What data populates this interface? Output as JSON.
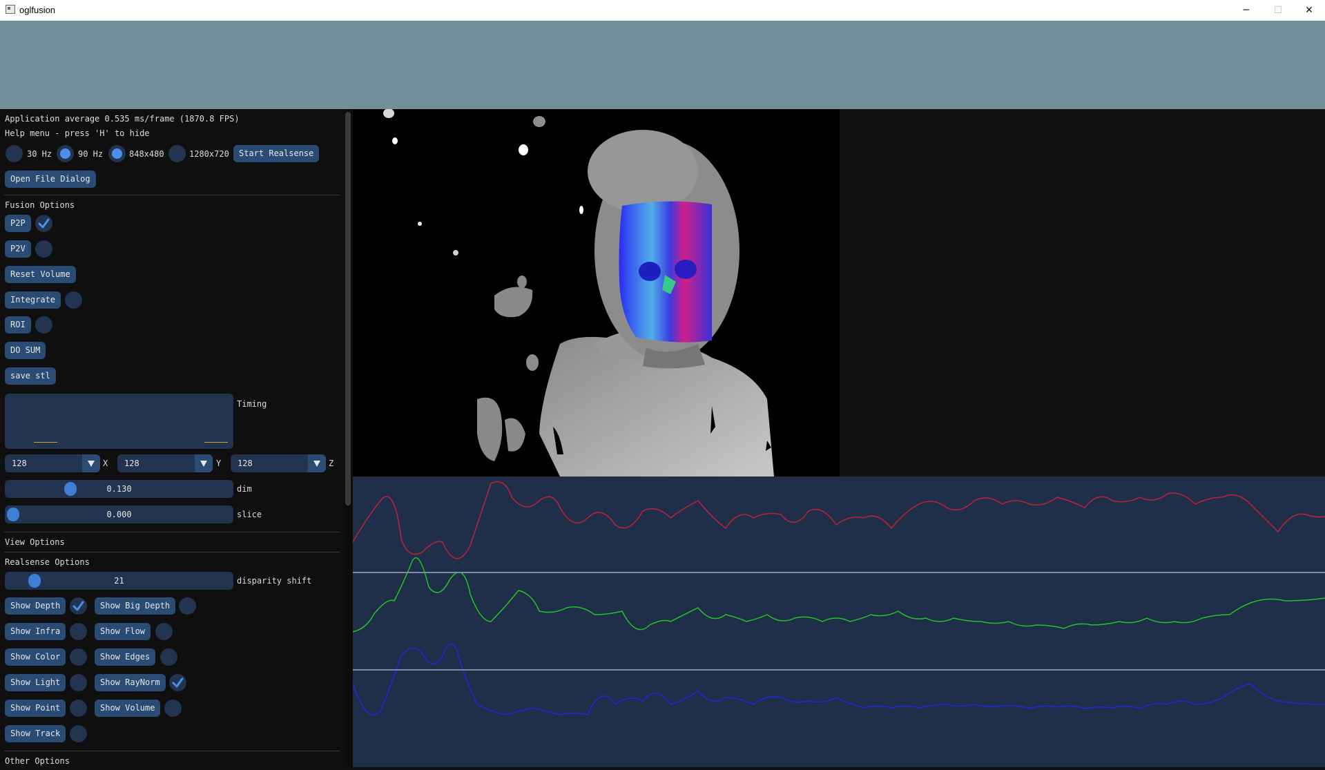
{
  "window": {
    "title": "oglfusion",
    "minimize": "─",
    "maximize": "☐",
    "close": "✕"
  },
  "status": {
    "fps_line": "Application average 0.535 ms/frame (1870.8 FPS)",
    "help_line": "Help menu - press 'H' to hide"
  },
  "camera": {
    "radios": [
      {
        "label": "30 Hz",
        "selected": false
      },
      {
        "label": "90 Hz",
        "selected": true
      },
      {
        "label": "848x480",
        "selected": true
      },
      {
        "label": "1280x720",
        "selected": false
      }
    ],
    "start_button": "Start Realsense",
    "open_file_button": "Open File Dialog"
  },
  "fusion": {
    "header": "Fusion Options",
    "p2p": {
      "label": "P2P",
      "checked": true
    },
    "p2v": {
      "label": "P2V",
      "checked": false
    },
    "reset_volume": "Reset Volume",
    "integrate": {
      "label": "Integrate",
      "checked": false
    },
    "roi": {
      "label": "ROI",
      "checked": false
    },
    "do_sum": "DO SUM",
    "save_stl": "save stl",
    "timing_label": "Timing",
    "dims": [
      {
        "value": "128",
        "axis": "X"
      },
      {
        "value": "128",
        "axis": "Y"
      },
      {
        "value": "128",
        "axis": "Z"
      }
    ],
    "dim_slider": {
      "value": "0.130",
      "label": "dim",
      "fraction": 0.27
    },
    "slice_slider": {
      "value": "0.000",
      "label": "slice",
      "fraction": 0.0
    }
  },
  "view_options": {
    "header": "View Options"
  },
  "realsense": {
    "header": "Realsense Options",
    "disparity": {
      "value": "21",
      "label": "disparity shift",
      "fraction": 0.1
    },
    "left_toggles": [
      {
        "label": "Show Depth",
        "checked": true
      },
      {
        "label": "Show Infra",
        "checked": false
      },
      {
        "label": "Show Color",
        "checked": false
      },
      {
        "label": "Show Light",
        "checked": false
      },
      {
        "label": "Show Point",
        "checked": false
      },
      {
        "label": "Show Track",
        "checked": false
      }
    ],
    "right_toggles": [
      {
        "label": "Show Big Depth",
        "checked": false
      },
      {
        "label": "Show Flow",
        "checked": false
      },
      {
        "label": "Show Edges",
        "checked": false
      },
      {
        "label": "Show RayNorm",
        "checked": true
      },
      {
        "label": "Show Volume",
        "checked": false
      }
    ]
  },
  "other_options": {
    "header": "Other Options"
  },
  "colors": {
    "background_band": "#708f99",
    "button": "#2a4b74",
    "frame": "#22344f",
    "accent": "#4c8fe8",
    "plot_bg": "#1f2e49",
    "trace_red": "#c0213a",
    "trace_green": "#23c523",
    "trace_blue": "#1c2ae0"
  },
  "icons": {
    "checkmark": "check-icon",
    "dropdown": "chevron-down-icon",
    "app": "app-icon"
  }
}
